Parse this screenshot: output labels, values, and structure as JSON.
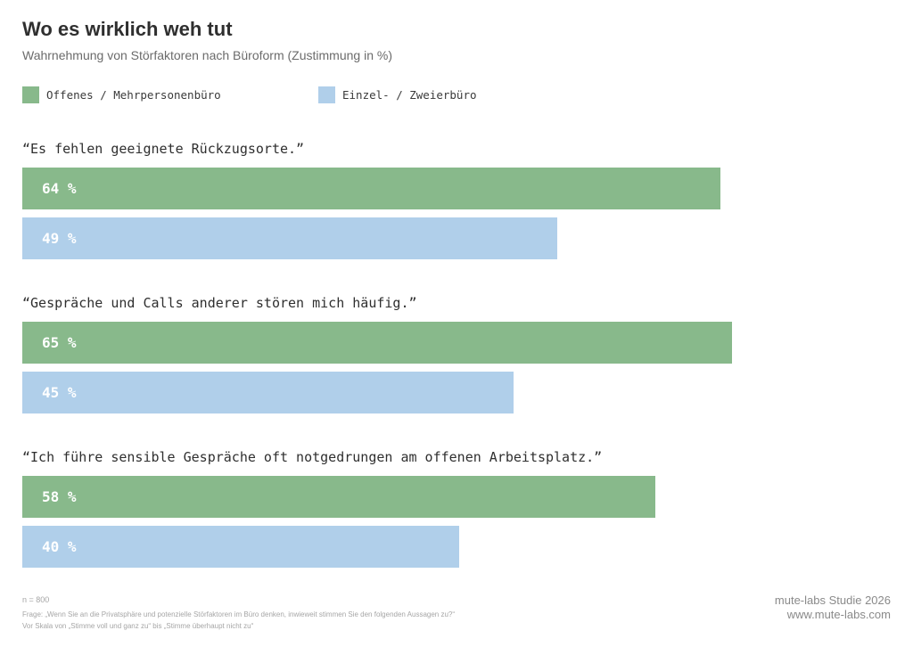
{
  "header": {
    "title": "Wo es wirklich weh tut",
    "subtitle": "Wahrnehmung von Störfaktoren nach Büroform (Zustimmung in %)"
  },
  "colors": {
    "open": "#88b98b",
    "single": "#b0cfea"
  },
  "chart_data": {
    "type": "bar",
    "orientation": "horizontal",
    "title": "Wo es wirklich weh tut",
    "subtitle": "Wahrnehmung von Störfaktoren nach Büroform (Zustimmung in %)",
    "xlim": [
      0,
      100
    ],
    "unit": "%",
    "grid": false,
    "legend_position": "top-left",
    "categories": [
      "“Es fehlen geeignete Rückzugsorte.”",
      "“Gespräche und Calls anderer stören mich häufig.”",
      "“Ich führe sensible Gespräche oft notgedrungen am offenen Arbeitsplatz.”"
    ],
    "series": [
      {
        "name": "Offenes / Mehrpersonenbüro",
        "color": "#88b98b",
        "values": [
          64,
          65,
          58
        ],
        "labels": [
          "64 %",
          "65 %",
          "58 %"
        ]
      },
      {
        "name": "Einzel- / Zweierbüro",
        "color": "#b0cfea",
        "values": [
          49,
          45,
          40
        ],
        "labels": [
          "49 %",
          "45 %",
          "40 %"
        ]
      }
    ]
  },
  "footer": {
    "n": "n = 800",
    "question": "Frage: „Wenn Sie an die Privatsphäre und potenzielle Störfaktoren im Büro denken, inwieweit stimmen Sie den folgenden Aussagen zu?“",
    "scale": "Vor Skala von „Stimme voll und ganz zu“ bis „Stimme überhaupt nicht zu“",
    "brand": "mute-labs Studie 2026",
    "url": "www.mute-labs.com"
  }
}
